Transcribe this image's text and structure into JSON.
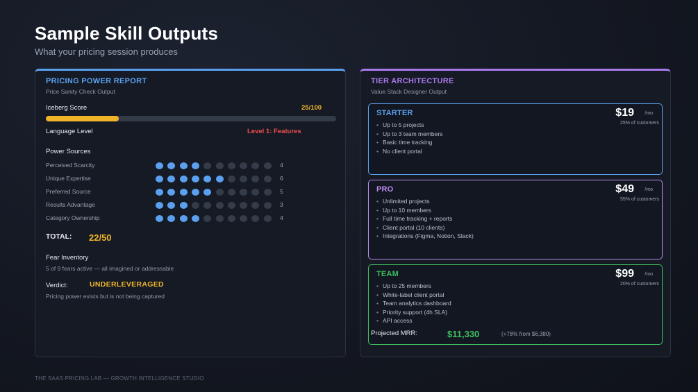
{
  "header": {
    "title": "Sample Skill Outputs",
    "subtitle": "What your pricing session produces"
  },
  "left": {
    "title": "PRICING POWER REPORT",
    "subtitle": "Price Sanity Check Output",
    "accent": "#5aa0ef",
    "iceberg": {
      "label": "Iceberg Score",
      "value": "25/100",
      "fraction": 0.25,
      "color": "#f0b429"
    },
    "language": {
      "label": "Language Level",
      "value": "Level 1: Features",
      "color": "#ef4f4f"
    },
    "power_sources": {
      "heading": "Power Sources",
      "max": 10,
      "rows": [
        {
          "name": "Perceived Scarcity",
          "score": 4,
          "display": "4"
        },
        {
          "name": "Unique Expertise",
          "score": 6,
          "display": "6"
        },
        {
          "name": "Preferred Source",
          "score": 5,
          "display": "5"
        },
        {
          "name": "Results Advantage",
          "score": 3,
          "display": "3"
        },
        {
          "name": "Category Ownership",
          "score": 4,
          "display": "4"
        }
      ]
    },
    "total": {
      "label": "TOTAL:",
      "value": "22/50"
    },
    "fear": {
      "heading": "Fear Inventory",
      "text": "5 of 9 fears active — all imagined or addressable"
    },
    "verdict": {
      "label": "Verdict:",
      "value": "UNDERLEVERAGED",
      "note": "Pricing power exists but is not being captured"
    }
  },
  "right": {
    "title": "TIER ARCHITECTURE",
    "subtitle": "Value Stack Designer Output",
    "accent": "#a879ec",
    "tiers": [
      {
        "name": "STARTER",
        "color": "#5aa0ef",
        "price": "$19",
        "per": "/mo",
        "customers": "25% of customers",
        "features": [
          "Up to 5 projects",
          "Up to 3 team members",
          "Basic time tracking",
          "No client portal"
        ]
      },
      {
        "name": "PRO",
        "color": "#c08bf2",
        "price": "$49",
        "per": "/mo",
        "customers": "55% of customers",
        "features": [
          "Unlimited projects",
          "Up to 10 members",
          "Full time tracking + reports",
          "Client portal (10 clients)",
          "Integrations (Figma, Notion, Slack)"
        ]
      },
      {
        "name": "TEAM",
        "color": "#3fbf5f",
        "price": "$99",
        "per": "/mo",
        "customers": "20% of customers",
        "features": [
          "Up to 25 members",
          "White-label client portal",
          "Team analytics dashboard",
          "Priority support (4h SLA)",
          "API access"
        ]
      }
    ],
    "mrr": {
      "label": "Projected MRR:",
      "value": "$11,330",
      "delta": "(+78% from $6,380)"
    }
  },
  "footer": {
    "text": "THE SAAS PRICING LAB — GROWTH INTELLIGENCE STUDIO"
  }
}
